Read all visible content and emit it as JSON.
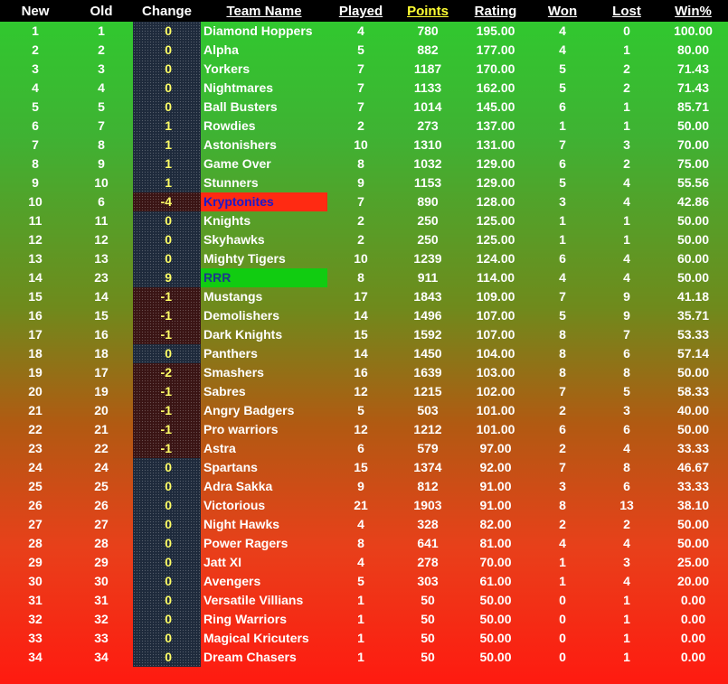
{
  "headers": {
    "new": "New",
    "old": "Old",
    "change": "Change",
    "team": "Team Name",
    "played": "Played",
    "points": "Points",
    "rating": "Rating",
    "won": "Won",
    "lost": "Lost",
    "win_pct": "Win%"
  },
  "colors": {
    "header_bg": "#000000",
    "points_header": "#ffff33",
    "change_text": "#ffff66",
    "gradient_top": "#2ecc2e",
    "gradient_bottom": "#ff1a10",
    "highlight_red": "#ff2a12",
    "highlight_green": "#11cc11",
    "highlight_text_blue": "#1a1acc"
  },
  "rows": [
    {
      "new": "1",
      "old": "1",
      "change": "0",
      "team": "Diamond Hoppers",
      "played": "4",
      "points": "780",
      "rating": "195.00",
      "won": "4",
      "lost": "0",
      "win": "100.00"
    },
    {
      "new": "2",
      "old": "2",
      "change": "0",
      "team": "Alpha",
      "played": "5",
      "points": "882",
      "rating": "177.00",
      "won": "4",
      "lost": "1",
      "win": "80.00"
    },
    {
      "new": "3",
      "old": "3",
      "change": "0",
      "team": "Yorkers",
      "played": "7",
      "points": "1187",
      "rating": "170.00",
      "won": "5",
      "lost": "2",
      "win": "71.43"
    },
    {
      "new": "4",
      "old": "4",
      "change": "0",
      "team": "Nightmares",
      "played": "7",
      "points": "1133",
      "rating": "162.00",
      "won": "5",
      "lost": "2",
      "win": "71.43"
    },
    {
      "new": "5",
      "old": "5",
      "change": "0",
      "team": "Ball Busters",
      "played": "7",
      "points": "1014",
      "rating": "145.00",
      "won": "6",
      "lost": "1",
      "win": "85.71"
    },
    {
      "new": "6",
      "old": "7",
      "change": "1",
      "team": "Rowdies",
      "played": "2",
      "points": "273",
      "rating": "137.00",
      "won": "1",
      "lost": "1",
      "win": "50.00"
    },
    {
      "new": "7",
      "old": "8",
      "change": "1",
      "team": "Astonishers",
      "played": "10",
      "points": "1310",
      "rating": "131.00",
      "won": "7",
      "lost": "3",
      "win": "70.00"
    },
    {
      "new": "8",
      "old": "9",
      "change": "1",
      "team": "Game Over",
      "played": "8",
      "points": "1032",
      "rating": "129.00",
      "won": "6",
      "lost": "2",
      "win": "75.00"
    },
    {
      "new": "9",
      "old": "10",
      "change": "1",
      "team": "Stunners",
      "played": "9",
      "points": "1153",
      "rating": "129.00",
      "won": "5",
      "lost": "4",
      "win": "55.56"
    },
    {
      "new": "10",
      "old": "6",
      "change": "-4",
      "team": "Kryptonites",
      "played": "7",
      "points": "890",
      "rating": "128.00",
      "won": "3",
      "lost": "4",
      "win": "42.86",
      "highlight": "red"
    },
    {
      "new": "11",
      "old": "11",
      "change": "0",
      "team": "Knights",
      "played": "2",
      "points": "250",
      "rating": "125.00",
      "won": "1",
      "lost": "1",
      "win": "50.00"
    },
    {
      "new": "12",
      "old": "12",
      "change": "0",
      "team": "Skyhawks",
      "played": "2",
      "points": "250",
      "rating": "125.00",
      "won": "1",
      "lost": "1",
      "win": "50.00"
    },
    {
      "new": "13",
      "old": "13",
      "change": "0",
      "team": "Mighty Tigers",
      "played": "10",
      "points": "1239",
      "rating": "124.00",
      "won": "6",
      "lost": "4",
      "win": "60.00"
    },
    {
      "new": "14",
      "old": "23",
      "change": "9",
      "team": "RRR",
      "played": "8",
      "points": "911",
      "rating": "114.00",
      "won": "4",
      "lost": "4",
      "win": "50.00",
      "highlight": "green"
    },
    {
      "new": "15",
      "old": "14",
      "change": "-1",
      "team": "Mustangs",
      "played": "17",
      "points": "1843",
      "rating": "109.00",
      "won": "7",
      "lost": "9",
      "win": "41.18"
    },
    {
      "new": "16",
      "old": "15",
      "change": "-1",
      "team": "Demolishers",
      "played": "14",
      "points": "1496",
      "rating": "107.00",
      "won": "5",
      "lost": "9",
      "win": "35.71"
    },
    {
      "new": "17",
      "old": "16",
      "change": "-1",
      "team": "Dark Knights",
      "played": "15",
      "points": "1592",
      "rating": "107.00",
      "won": "8",
      "lost": "7",
      "win": "53.33"
    },
    {
      "new": "18",
      "old": "18",
      "change": "0",
      "team": "Panthers",
      "played": "14",
      "points": "1450",
      "rating": "104.00",
      "won": "8",
      "lost": "6",
      "win": "57.14"
    },
    {
      "new": "19",
      "old": "17",
      "change": "-2",
      "team": "Smashers",
      "played": "16",
      "points": "1639",
      "rating": "103.00",
      "won": "8",
      "lost": "8",
      "win": "50.00"
    },
    {
      "new": "20",
      "old": "19",
      "change": "-1",
      "team": "Sabres",
      "played": "12",
      "points": "1215",
      "rating": "102.00",
      "won": "7",
      "lost": "5",
      "win": "58.33"
    },
    {
      "new": "21",
      "old": "20",
      "change": "-1",
      "team": "Angry Badgers",
      "played": "5",
      "points": "503",
      "rating": "101.00",
      "won": "2",
      "lost": "3",
      "win": "40.00"
    },
    {
      "new": "22",
      "old": "21",
      "change": "-1",
      "team": "Pro warriors",
      "played": "12",
      "points": "1212",
      "rating": "101.00",
      "won": "6",
      "lost": "6",
      "win": "50.00"
    },
    {
      "new": "23",
      "old": "22",
      "change": "-1",
      "team": "Astra",
      "played": "6",
      "points": "579",
      "rating": "97.00",
      "won": "2",
      "lost": "4",
      "win": "33.33"
    },
    {
      "new": "24",
      "old": "24",
      "change": "0",
      "team": "Spartans",
      "played": "15",
      "points": "1374",
      "rating": "92.00",
      "won": "7",
      "lost": "8",
      "win": "46.67"
    },
    {
      "new": "25",
      "old": "25",
      "change": "0",
      "team": "Adra Sakka",
      "played": "9",
      "points": "812",
      "rating": "91.00",
      "won": "3",
      "lost": "6",
      "win": "33.33"
    },
    {
      "new": "26",
      "old": "26",
      "change": "0",
      "team": "Victorious",
      "played": "21",
      "points": "1903",
      "rating": "91.00",
      "won": "8",
      "lost": "13",
      "win": "38.10"
    },
    {
      "new": "27",
      "old": "27",
      "change": "0",
      "team": "Night Hawks",
      "played": "4",
      "points": "328",
      "rating": "82.00",
      "won": "2",
      "lost": "2",
      "win": "50.00"
    },
    {
      "new": "28",
      "old": "28",
      "change": "0",
      "team": "Power Ragers",
      "played": "8",
      "points": "641",
      "rating": "81.00",
      "won": "4",
      "lost": "4",
      "win": "50.00"
    },
    {
      "new": "29",
      "old": "29",
      "change": "0",
      "team": "Jatt XI",
      "played": "4",
      "points": "278",
      "rating": "70.00",
      "won": "1",
      "lost": "3",
      "win": "25.00"
    },
    {
      "new": "30",
      "old": "30",
      "change": "0",
      "team": "Avengers",
      "played": "5",
      "points": "303",
      "rating": "61.00",
      "won": "1",
      "lost": "4",
      "win": "20.00"
    },
    {
      "new": "31",
      "old": "31",
      "change": "0",
      "team": "Versatile Villians",
      "played": "1",
      "points": "50",
      "rating": "50.00",
      "won": "0",
      "lost": "1",
      "win": "0.00"
    },
    {
      "new": "32",
      "old": "32",
      "change": "0",
      "team": "Ring Warriors",
      "played": "1",
      "points": "50",
      "rating": "50.00",
      "won": "0",
      "lost": "1",
      "win": "0.00"
    },
    {
      "new": "33",
      "old": "33",
      "change": "0",
      "team": "Magical Kricuters",
      "played": "1",
      "points": "50",
      "rating": "50.00",
      "won": "0",
      "lost": "1",
      "win": "0.00"
    },
    {
      "new": "34",
      "old": "34",
      "change": "0",
      "team": "Dream Chasers",
      "played": "1",
      "points": "50",
      "rating": "50.00",
      "won": "0",
      "lost": "1",
      "win": "0.00"
    }
  ]
}
